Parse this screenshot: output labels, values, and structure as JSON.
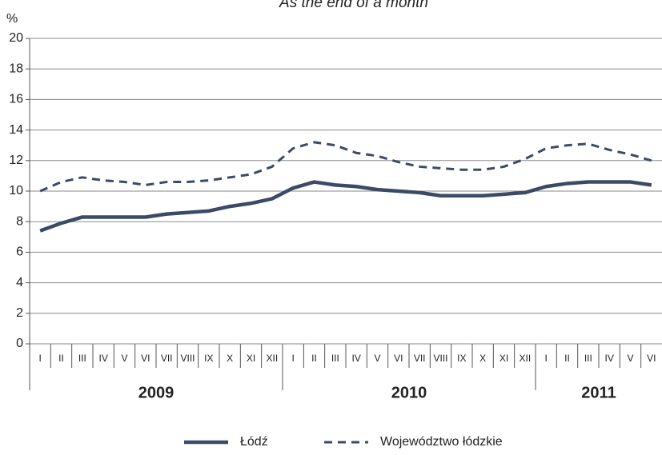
{
  "chart_data": {
    "type": "line",
    "title": "As the end of a month",
    "y_label": "%",
    "categories": [
      "I",
      "II",
      "III",
      "IV",
      "V",
      "VI",
      "VII",
      "VIII",
      "IX",
      "X",
      "XI",
      "XII",
      "I",
      "II",
      "III",
      "IV",
      "V",
      "VI",
      "VII",
      "VIII",
      "IX",
      "X",
      "XI",
      "XII",
      "I",
      "II",
      "III",
      "IV",
      "V",
      "VI"
    ],
    "groups": [
      {
        "label": "2009",
        "span": 12
      },
      {
        "label": "2010",
        "span": 12
      },
      {
        "label": "2011",
        "span": 6
      }
    ],
    "series": [
      {
        "name": "Łódź",
        "color": "#3b4b67",
        "dash": false,
        "values": [
          7.4,
          7.9,
          8.3,
          8.3,
          8.3,
          8.3,
          8.5,
          8.6,
          8.7,
          9.0,
          9.2,
          9.5,
          10.2,
          10.6,
          10.4,
          10.3,
          10.1,
          10.0,
          9.9,
          9.7,
          9.7,
          9.7,
          9.8,
          9.9,
          10.3,
          10.5,
          10.6,
          10.6,
          10.6,
          10.4
        ]
      },
      {
        "name": "Województwo łódzkie",
        "color": "#3b4b67",
        "dash": true,
        "values": [
          10.0,
          10.6,
          10.9,
          10.7,
          10.6,
          10.4,
          10.6,
          10.6,
          10.7,
          10.9,
          11.1,
          11.6,
          12.8,
          13.2,
          13.0,
          12.5,
          12.3,
          11.9,
          11.6,
          11.5,
          11.4,
          11.4,
          11.6,
          12.1,
          12.8,
          13.0,
          13.1,
          12.7,
          12.4,
          12.0
        ]
      }
    ],
    "ylim": [
      0,
      20
    ],
    "yticks": [
      0,
      2,
      4,
      6,
      8,
      10,
      12,
      14,
      16,
      18,
      20
    ],
    "grid": true
  }
}
